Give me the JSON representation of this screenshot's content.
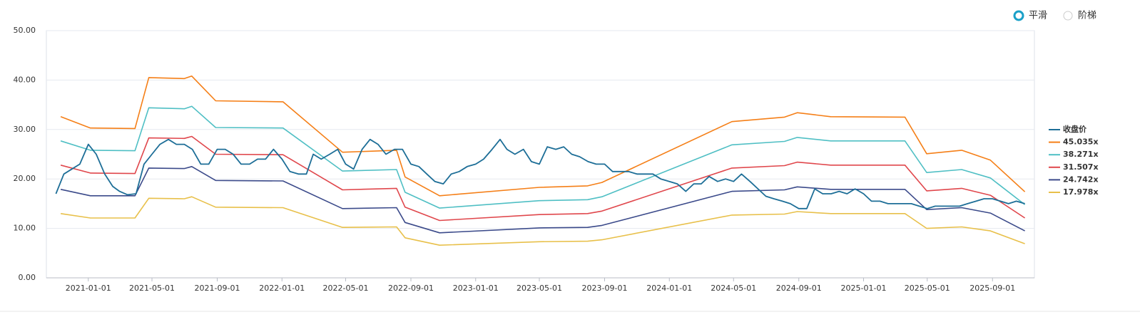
{
  "controls": [
    {
      "label": "平滑",
      "selected": true
    },
    {
      "label": "阶梯",
      "selected": false
    }
  ],
  "chart_data": {
    "type": "line",
    "xlim": [
      "2020-10-14",
      "2025-11-19"
    ],
    "xticks": [
      "2021-01-01",
      "2021-05-01",
      "2021-09-01",
      "2022-01-01",
      "2022-05-01",
      "2022-09-01",
      "2023-01-01",
      "2023-05-01",
      "2023-09-01",
      "2024-01-01",
      "2024-05-01",
      "2024-09-01",
      "2025-01-01",
      "2025-05-01",
      "2025-09-01"
    ],
    "ylim": [
      0,
      50
    ],
    "yticks": [
      {
        "value": 0,
        "label": "0.00"
      },
      {
        "value": 10,
        "label": "10.00"
      },
      {
        "value": 20,
        "label": "20.00"
      },
      {
        "value": 30,
        "label": "30.00"
      },
      {
        "value": 40,
        "label": "40.00"
      },
      {
        "value": 50,
        "label": "50.00"
      }
    ],
    "grid": true,
    "legend": "right",
    "series": [
      {
        "name": "收盘价",
        "color": "#1d6e97",
        "x": [
          "2020-11-01",
          "2020-11-16",
          "2020-12-01",
          "2020-12-16",
          "2021-01-01",
          "2021-01-16",
          "2021-02-01",
          "2021-02-16",
          "2021-03-01",
          "2021-03-16",
          "2021-04-01",
          "2021-04-16",
          "2021-05-01",
          "2021-05-16",
          "2021-06-01",
          "2021-06-16",
          "2021-07-01",
          "2021-07-16",
          "2021-08-01",
          "2021-08-16",
          "2021-09-01",
          "2021-09-16",
          "2021-10-01",
          "2021-10-16",
          "2021-11-01",
          "2021-11-16",
          "2021-12-01",
          "2021-12-16",
          "2022-01-01",
          "2022-01-16",
          "2022-02-01",
          "2022-02-16",
          "2022-03-01",
          "2022-03-16",
          "2022-04-01",
          "2022-04-16",
          "2022-05-01",
          "2022-05-16",
          "2022-06-01",
          "2022-06-16",
          "2022-07-01",
          "2022-07-16",
          "2022-08-01",
          "2022-08-16",
          "2022-09-01",
          "2022-09-16",
          "2022-10-01",
          "2022-10-16",
          "2022-11-01",
          "2022-11-16",
          "2022-12-01",
          "2022-12-16",
          "2023-01-01",
          "2023-01-16",
          "2023-02-01",
          "2023-02-16",
          "2023-03-01",
          "2023-03-16",
          "2023-04-01",
          "2023-04-16",
          "2023-05-01",
          "2023-05-16",
          "2023-06-01",
          "2023-06-16",
          "2023-07-01",
          "2023-07-16",
          "2023-08-01",
          "2023-08-16",
          "2023-09-01",
          "2023-09-16",
          "2023-10-01",
          "2023-10-16",
          "2023-11-01",
          "2023-11-16",
          "2023-12-01",
          "2023-12-16",
          "2024-01-01",
          "2024-01-16",
          "2024-02-01",
          "2024-02-16",
          "2024-03-01",
          "2024-03-16",
          "2024-04-01",
          "2024-04-16",
          "2024-05-01",
          "2024-05-16",
          "2024-06-01",
          "2024-06-16",
          "2024-07-01",
          "2024-07-16",
          "2024-08-01",
          "2024-08-16",
          "2024-09-01",
          "2024-09-16",
          "2024-10-01",
          "2024-10-16",
          "2024-11-01",
          "2024-11-16",
          "2024-12-01",
          "2024-12-16",
          "2025-01-01",
          "2025-01-16",
          "2025-02-01",
          "2025-02-16",
          "2025-03-01",
          "2025-03-16",
          "2025-04-01",
          "2025-04-16",
          "2025-05-01",
          "2025-05-16",
          "2025-06-01",
          "2025-06-16",
          "2025-07-01",
          "2025-07-16",
          "2025-08-01",
          "2025-08-16",
          "2025-09-01",
          "2025-09-16",
          "2025-10-01",
          "2025-10-16",
          "2025-11-01"
        ],
        "values": [
          17,
          21,
          22,
          23,
          27,
          25,
          21,
          18.5,
          17.5,
          16.8,
          17,
          23,
          25,
          27,
          28,
          27,
          27,
          26,
          23,
          23,
          26,
          26,
          25,
          23,
          23,
          24,
          24,
          26,
          24,
          21.5,
          21,
          21,
          25,
          24,
          25,
          26,
          23,
          22,
          26,
          28,
          27,
          25,
          26,
          26,
          23,
          22.5,
          21,
          19.5,
          19,
          21,
          21.5,
          22.5,
          23,
          24,
          26,
          28,
          26,
          25,
          26,
          23.5,
          23,
          26.5,
          26,
          26.5,
          25,
          24.5,
          23.5,
          23,
          23,
          21.5,
          21.5,
          21.5,
          21,
          21,
          21,
          20,
          19.5,
          19,
          17.5,
          19,
          19,
          20.5,
          19.5,
          20,
          19.5,
          21,
          19.5,
          18,
          16.5,
          16,
          15.5,
          15,
          14,
          14,
          18,
          17,
          17,
          17.5,
          17,
          18,
          17,
          15.5,
          15.5,
          15,
          15,
          15,
          15,
          14.5,
          14,
          14.5,
          14.5,
          14.5,
          14.5,
          15,
          15.5,
          16,
          16,
          15.5,
          15,
          15.5,
          15
        ]
      },
      {
        "name": "45.035x",
        "color": "#f57f17",
        "x": [
          "2020-11-10",
          "2021-01-05",
          "2021-03-30",
          "2021-04-25",
          "2021-07-01",
          "2021-07-15",
          "2021-08-29",
          "2022-01-03",
          "2022-04-25",
          "2022-08-05",
          "2022-08-21",
          "2022-10-25",
          "2023-05-01",
          "2023-07-31",
          "2023-08-27",
          "2024-04-28",
          "2024-08-05",
          "2024-08-29",
          "2024-10-31",
          "2025-03-20",
          "2025-04-30",
          "2025-07-05",
          "2025-08-28",
          "2025-11-01"
        ],
        "values": [
          32.6,
          30.3,
          30.2,
          40.5,
          40.3,
          40.8,
          35.8,
          35.6,
          25.4,
          25.8,
          20.4,
          16.6,
          18.3,
          18.6,
          19.3,
          31.6,
          32.5,
          33.4,
          32.6,
          32.5,
          25.1,
          25.8,
          23.8,
          17.4
        ]
      },
      {
        "name": "38.271x",
        "color": "#4fbfc4",
        "x": [
          "2020-11-10",
          "2021-01-05",
          "2021-03-30",
          "2021-04-25",
          "2021-07-01",
          "2021-07-15",
          "2021-08-29",
          "2022-01-03",
          "2022-04-25",
          "2022-08-05",
          "2022-08-21",
          "2022-10-25",
          "2023-05-01",
          "2023-07-31",
          "2023-08-27",
          "2024-04-28",
          "2024-08-05",
          "2024-08-29",
          "2024-10-31",
          "2025-03-20",
          "2025-04-30",
          "2025-07-05",
          "2025-08-28",
          "2025-11-01"
        ],
        "values": [
          27.7,
          25.8,
          25.7,
          34.4,
          34.2,
          34.7,
          30.4,
          30.3,
          21.6,
          21.9,
          17.3,
          14.1,
          15.6,
          15.8,
          16.4,
          26.9,
          27.6,
          28.4,
          27.7,
          27.7,
          21.3,
          21.9,
          20.2,
          14.8
        ]
      },
      {
        "name": "31.507x",
        "color": "#e0474c",
        "x": [
          "2020-11-10",
          "2021-01-05",
          "2021-03-30",
          "2021-04-25",
          "2021-07-01",
          "2021-07-15",
          "2021-08-29",
          "2022-01-03",
          "2022-04-25",
          "2022-08-05",
          "2022-08-21",
          "2022-10-25",
          "2023-05-01",
          "2023-07-31",
          "2023-08-27",
          "2024-04-28",
          "2024-08-05",
          "2024-08-29",
          "2024-10-31",
          "2025-03-20",
          "2025-04-30",
          "2025-07-05",
          "2025-08-28",
          "2025-11-01"
        ],
        "values": [
          22.8,
          21.2,
          21.1,
          28.3,
          28.2,
          28.6,
          25.0,
          24.9,
          17.8,
          18.1,
          14.3,
          11.6,
          12.8,
          13.0,
          13.5,
          22.2,
          22.7,
          23.4,
          22.8,
          22.8,
          17.6,
          18.1,
          16.7,
          12.1
        ]
      },
      {
        "name": "24.742x",
        "color": "#3b4a8a",
        "x": [
          "2020-11-10",
          "2021-01-05",
          "2021-03-30",
          "2021-04-25",
          "2021-07-01",
          "2021-07-15",
          "2021-08-29",
          "2022-01-03",
          "2022-04-25",
          "2022-08-05",
          "2022-08-21",
          "2022-10-25",
          "2023-05-01",
          "2023-07-31",
          "2023-08-27",
          "2024-04-28",
          "2024-08-05",
          "2024-08-29",
          "2024-10-31",
          "2025-03-20",
          "2025-04-30",
          "2025-07-05",
          "2025-08-28",
          "2025-11-01"
        ],
        "values": [
          17.9,
          16.6,
          16.6,
          22.2,
          22.1,
          22.5,
          19.7,
          19.6,
          14.0,
          14.2,
          11.2,
          9.1,
          10.1,
          10.2,
          10.6,
          17.5,
          17.8,
          18.4,
          17.9,
          17.9,
          13.8,
          14.2,
          13.1,
          9.5
        ]
      },
      {
        "name": "17.978x",
        "color": "#e8c04a",
        "x": [
          "2020-11-10",
          "2021-01-05",
          "2021-03-30",
          "2021-04-25",
          "2021-07-01",
          "2021-07-15",
          "2021-08-29",
          "2022-01-03",
          "2022-04-25",
          "2022-08-05",
          "2022-08-21",
          "2022-10-25",
          "2023-05-01",
          "2023-07-31",
          "2023-08-27",
          "2024-04-28",
          "2024-08-05",
          "2024-08-29",
          "2024-10-31",
          "2025-03-20",
          "2025-04-30",
          "2025-07-05",
          "2025-08-28",
          "2025-11-01"
        ],
        "values": [
          13.0,
          12.1,
          12.1,
          16.1,
          16.0,
          16.4,
          14.3,
          14.2,
          10.2,
          10.3,
          8.1,
          6.6,
          7.3,
          7.4,
          7.7,
          12.7,
          12.9,
          13.4,
          13.0,
          13.0,
          10.0,
          10.3,
          9.5,
          6.9
        ]
      }
    ]
  }
}
